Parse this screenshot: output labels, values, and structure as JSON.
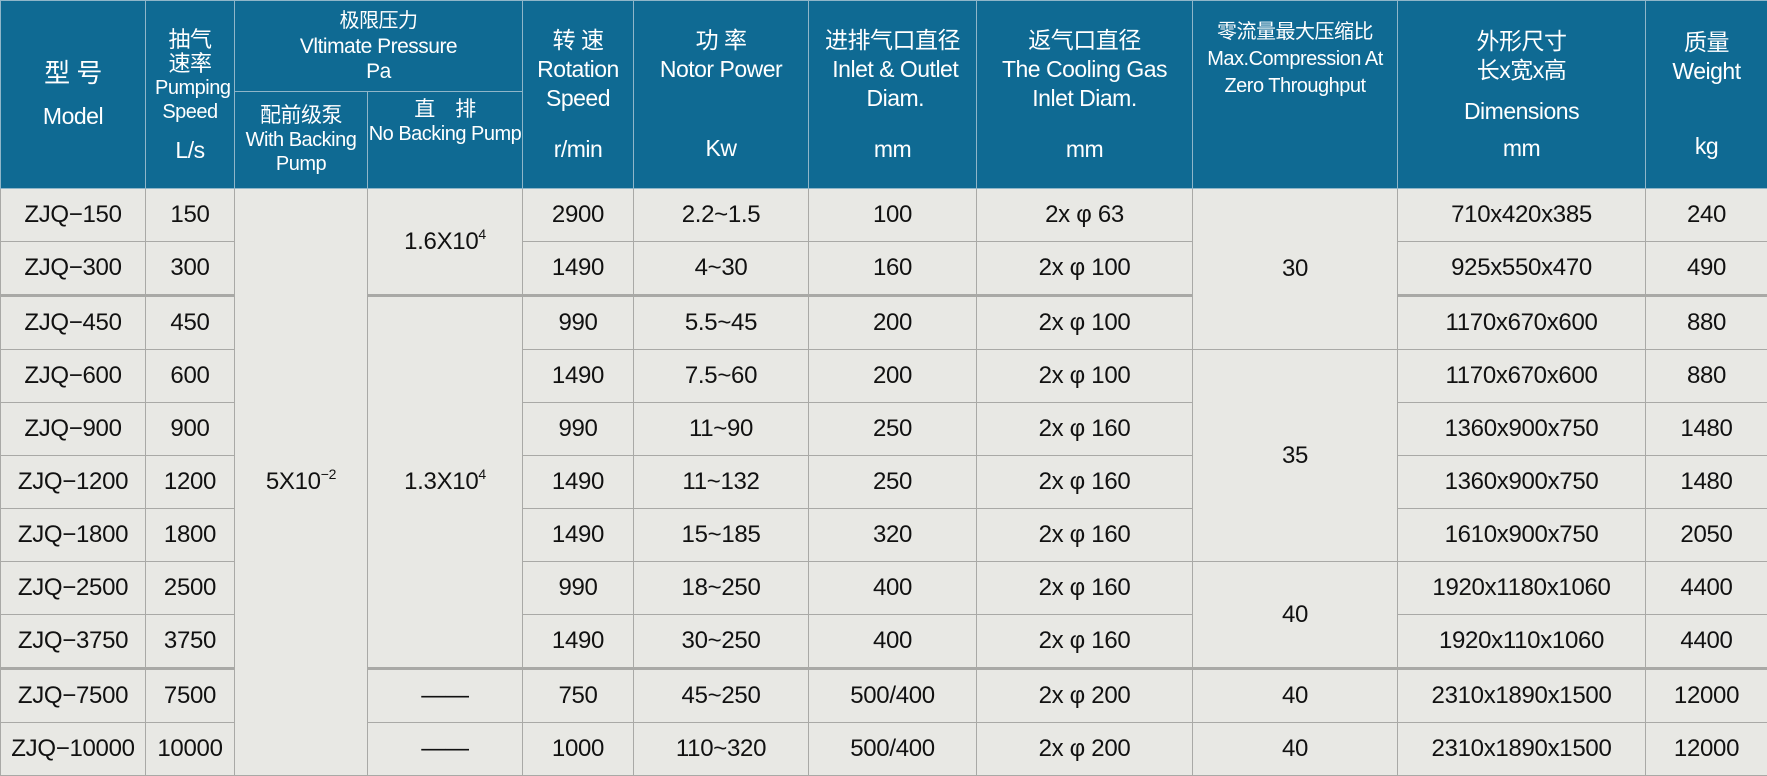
{
  "header": {
    "model": {
      "zh": "型 号",
      "en": "Model"
    },
    "pumping_speed": {
      "zh": "抽气速率",
      "en": "Pumping Speed",
      "unit": "L/s"
    },
    "ultimate_pressure": {
      "zh": "极限压力",
      "en": "Vltimate Pressure",
      "unit": "Pa"
    },
    "with_backing": {
      "zh": "配前级泵",
      "en": "With Backing Pump"
    },
    "no_backing": {
      "zh": "直　排",
      "en": "No Backing Pump"
    },
    "rotation": {
      "zh": "转 速",
      "en": "Rotation Speed",
      "unit": "r/min"
    },
    "power": {
      "zh": "功 率",
      "en": "Notor Power",
      "unit": "Kw"
    },
    "inlet_outlet": {
      "zh": "进排气口直径",
      "en": "Inlet & Outlet Diam.",
      "unit": "mm"
    },
    "cooling_gas": {
      "zh": "返气口直径",
      "en": "The Cooling Gas Inlet Diam.",
      "unit": "mm"
    },
    "compression": {
      "zh": "零流量最大压缩比",
      "en": "Max.Compression At Zero Throughput"
    },
    "dimensions": {
      "zh": "外形尺寸",
      "zh2": "长x宽x高",
      "en": "Dimensions",
      "unit": "mm"
    },
    "weight": {
      "zh": "质量",
      "en": "Weight",
      "unit": "kg"
    }
  },
  "with_backing_value": {
    "base": "5X10",
    "exp": "−2"
  },
  "no_backing_groups": [
    {
      "base": "1.6X10",
      "exp": "4"
    },
    {
      "base": "1.3X10",
      "exp": "4"
    },
    {
      "base": "——",
      "exp": ""
    },
    {
      "base": "——",
      "exp": ""
    }
  ],
  "compression_groups": [
    "30",
    "35",
    "40",
    "40",
    "40"
  ],
  "rows": [
    {
      "model": "ZJQ−150",
      "speed": "150",
      "rpm": "2900",
      "power": "2.2~1.5",
      "inlet": "100",
      "cooling": "2x φ 63",
      "dim": "710x420x385",
      "weight": "240"
    },
    {
      "model": "ZJQ−300",
      "speed": "300",
      "rpm": "1490",
      "power": "4~30",
      "inlet": "160",
      "cooling": "2x φ 100",
      "dim": "925x550x470",
      "weight": "490"
    },
    {
      "model": "ZJQ−450",
      "speed": "450",
      "rpm": "990",
      "power": "5.5~45",
      "inlet": "200",
      "cooling": "2x φ 100",
      "dim": "1170x670x600",
      "weight": "880"
    },
    {
      "model": "ZJQ−600",
      "speed": "600",
      "rpm": "1490",
      "power": "7.5~60",
      "inlet": "200",
      "cooling": "2x φ 100",
      "dim": "1170x670x600",
      "weight": "880"
    },
    {
      "model": "ZJQ−900",
      "speed": "900",
      "rpm": "990",
      "power": "11~90",
      "inlet": "250",
      "cooling": "2x φ 160",
      "dim": "1360x900x750",
      "weight": "1480"
    },
    {
      "model": "ZJQ−1200",
      "speed": "1200",
      "rpm": "1490",
      "power": "11~132",
      "inlet": "250",
      "cooling": "2x φ 160",
      "dim": "1360x900x750",
      "weight": "1480"
    },
    {
      "model": "ZJQ−1800",
      "speed": "1800",
      "rpm": "1490",
      "power": "15~185",
      "inlet": "320",
      "cooling": "2x φ 160",
      "dim": "1610x900x750",
      "weight": "2050"
    },
    {
      "model": "ZJQ−2500",
      "speed": "2500",
      "rpm": "990",
      "power": "18~250",
      "inlet": "400",
      "cooling": "2x φ 160",
      "dim": "1920x1180x1060",
      "weight": "4400"
    },
    {
      "model": "ZJQ−3750",
      "speed": "3750",
      "rpm": "1490",
      "power": "30~250",
      "inlet": "400",
      "cooling": "2x φ 160",
      "dim": "1920x110x1060",
      "weight": "4400"
    },
    {
      "model": "ZJQ−7500",
      "speed": "7500",
      "rpm": "750",
      "power": "45~250",
      "inlet": "500/400",
      "cooling": "2x φ 200",
      "dim": "2310x1890x1500",
      "weight": "12000"
    },
    {
      "model": "ZJQ−10000",
      "speed": "10000",
      "rpm": "1000",
      "power": "110~320",
      "inlet": "500/400",
      "cooling": "2x φ 200",
      "dim": "2310x1890x1500",
      "weight": "12000"
    }
  ]
}
